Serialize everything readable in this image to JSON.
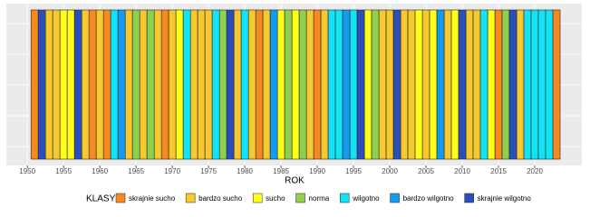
{
  "chart_data": {
    "type": "stripes",
    "x_label": "ROK",
    "legend_title": "KLASY",
    "xlim": [
      1947.1,
      2026.5
    ],
    "xticks": [
      1950,
      1955,
      1960,
      1965,
      1970,
      1975,
      1980,
      1985,
      1990,
      1995,
      2000,
      2005,
      2010,
      2015,
      2020
    ],
    "grid": true,
    "series": [
      {
        "name": "skrajnie sucho",
        "color": "#f58a1f",
        "x": [
          1951,
          1959,
          1961,
          1969,
          1982,
          1990,
          2015,
          2023
        ]
      },
      {
        "name": "bardzo sucho",
        "color": "#f7c931",
        "x": [
          1953,
          1954,
          1958,
          1960,
          1964,
          1966,
          1968,
          1970,
          1973,
          1974,
          1975,
          1979,
          1981,
          1983,
          1989,
          1991,
          1999,
          2000,
          2002,
          2003,
          2005,
          2008,
          2011,
          2012,
          2018
        ]
      },
      {
        "name": "sucho",
        "color": "#ffff1a",
        "x": [
          1955,
          1956,
          1971,
          1985,
          1987,
          1997,
          2004,
          2006,
          2009,
          2014
        ]
      },
      {
        "name": "norma",
        "color": "#8fd14f",
        "x": [
          1965,
          1967,
          1977,
          1986,
          1988,
          1998,
          2016
        ]
      },
      {
        "name": "wilgotno",
        "color": "#14e3f5",
        "x": [
          1962,
          1972,
          1976,
          1980,
          1992,
          1993,
          1995,
          2013,
          2019,
          2020,
          2021,
          2022
        ]
      },
      {
        "name": "bardzo wilgotno",
        "color": "#139bf0",
        "x": [
          1963,
          1984,
          1994,
          2007
        ]
      },
      {
        "name": "skrajnie wilgotno",
        "color": "#2b4fb8",
        "x": [
          1952,
          1957,
          1978,
          1996,
          2001,
          2010,
          2017
        ]
      }
    ]
  }
}
